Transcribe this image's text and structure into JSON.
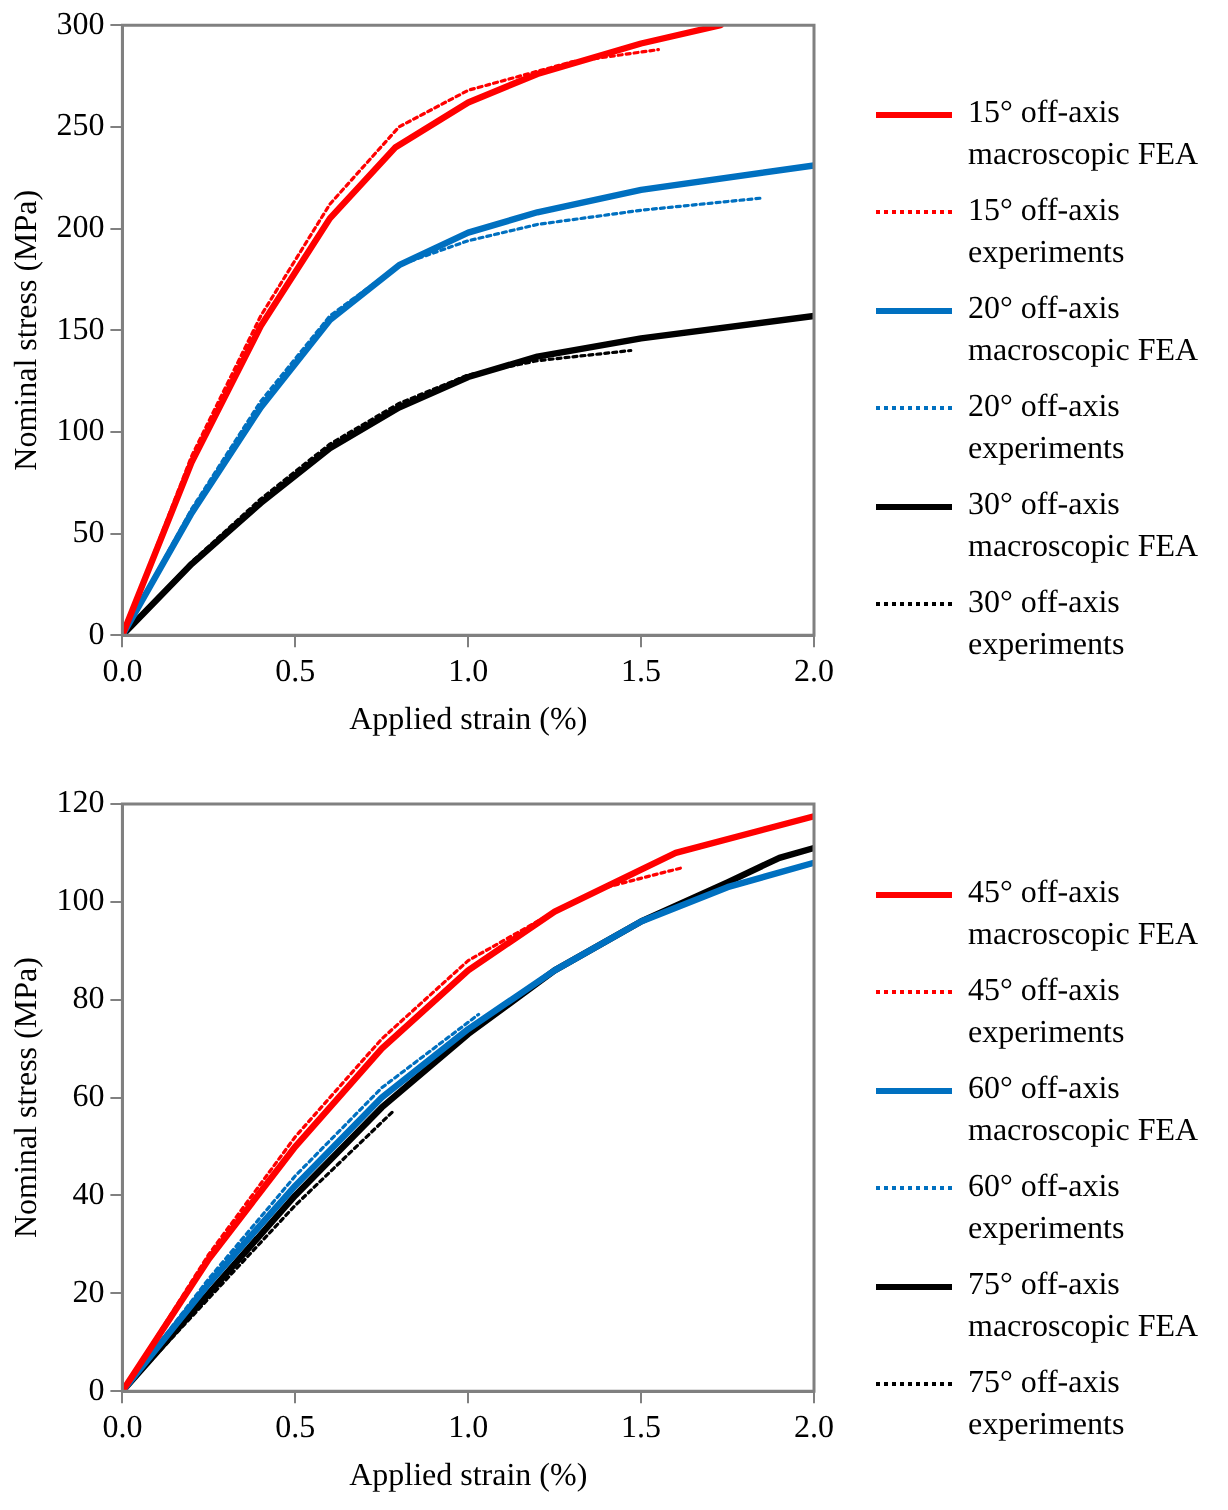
{
  "chart_data": [
    {
      "type": "line",
      "xlabel": "Applied strain (%)",
      "ylabel": "Nominal stress (MPa)",
      "xlim": [
        0,
        2
      ],
      "ylim": [
        0,
        300
      ],
      "xticks": [
        {
          "value": 0,
          "label": "0.0"
        },
        {
          "value": 0.5,
          "label": "0.5"
        },
        {
          "value": 1,
          "label": "1.0"
        },
        {
          "value": 1.5,
          "label": "1.5"
        },
        {
          "value": 2,
          "label": "2.0"
        }
      ],
      "yticks": [
        0,
        50,
        100,
        150,
        200,
        250,
        300
      ],
      "grid": false,
      "legend": "right",
      "marker": "none",
      "series": [
        {
          "name": "15°  off-axis macroscopic FEA",
          "color": "#ff0000",
          "line_style": "solid",
          "x": [
            0,
            0.2,
            0.4,
            0.6,
            0.79,
            1.0,
            1.2,
            1.5,
            1.73
          ],
          "values": [
            0,
            85,
            152,
            205,
            240,
            262,
            276,
            291,
            300
          ]
        },
        {
          "name": "15°  off-axis experiments",
          "color": "#ff0000",
          "line_style": "dotted",
          "x": [
            0,
            0.2,
            0.4,
            0.6,
            0.8,
            1.0,
            1.3,
            1.55
          ],
          "values": [
            0,
            88,
            157,
            212,
            250,
            268,
            282,
            288
          ]
        },
        {
          "name": "20°  off-axis macroscopic FEA",
          "color": "#0070c0",
          "line_style": "solid",
          "x": [
            0,
            0.2,
            0.4,
            0.6,
            0.8,
            1.0,
            1.2,
            1.5,
            2.0
          ],
          "values": [
            0,
            60,
            112,
            155,
            182,
            198,
            208,
            219,
            231
          ]
        },
        {
          "name": "20°  off-axis experiments",
          "color": "#0070c0",
          "line_style": "dotted",
          "x": [
            0,
            0.2,
            0.4,
            0.6,
            0.8,
            1.0,
            1.2,
            1.5,
            1.85
          ],
          "values": [
            0,
            62,
            115,
            157,
            182,
            194,
            202,
            209,
            215
          ]
        },
        {
          "name": "30°  off-axis macroscopic FEA",
          "color": "#000000",
          "line_style": "solid",
          "x": [
            0,
            0.2,
            0.4,
            0.6,
            0.8,
            1.0,
            1.2,
            1.5,
            2.0
          ],
          "values": [
            0,
            35,
            65,
            92,
            112,
            127,
            137,
            146,
            157
          ]
        },
        {
          "name": "30°  off-axis experiments",
          "color": "#000000",
          "line_style": "dotted",
          "x": [
            0,
            0.2,
            0.4,
            0.6,
            0.8,
            1.0,
            1.2,
            1.47
          ],
          "values": [
            0,
            36,
            67,
            94,
            114,
            128,
            135,
            140
          ]
        }
      ]
    },
    {
      "type": "line",
      "xlabel": "Applied strain (%)",
      "ylabel": "Nominal stress (MPa)",
      "xlim": [
        0,
        2
      ],
      "ylim": [
        0,
        120
      ],
      "xticks": [
        {
          "value": 0,
          "label": "0.0"
        },
        {
          "value": 0.5,
          "label": "0.5"
        },
        {
          "value": 1,
          "label": "1.0"
        },
        {
          "value": 1.5,
          "label": "1.5"
        },
        {
          "value": 2,
          "label": "2.0"
        }
      ],
      "yticks": [
        0,
        20,
        40,
        60,
        80,
        100,
        120
      ],
      "grid": false,
      "legend": "right",
      "marker": "none",
      "series": [
        {
          "name": "45°  off-axis macroscopic FEA",
          "color": "#ff0000",
          "line_style": "solid",
          "x": [
            0,
            0.25,
            0.5,
            0.75,
            1.0,
            1.25,
            1.6,
            2.0
          ],
          "values": [
            0,
            27,
            50,
            70,
            86,
            98,
            110,
            117.5
          ]
        },
        {
          "name": "45°  off-axis experiments",
          "color": "#ff0000",
          "line_style": "dotted",
          "x": [
            0,
            0.25,
            0.5,
            0.75,
            1.0,
            1.25,
            1.4,
            1.62
          ],
          "values": [
            0,
            28,
            52,
            72,
            88,
            98,
            103,
            107
          ]
        },
        {
          "name": "60°  off-axis macroscopic FEA",
          "color": "#0070c0",
          "line_style": "solid",
          "x": [
            0,
            0.25,
            0.5,
            0.75,
            1.0,
            1.25,
            1.5,
            1.75,
            2.0
          ],
          "values": [
            0,
            22,
            42,
            60,
            74,
            86,
            96,
            103,
            108
          ]
        },
        {
          "name": "60°  off-axis experiments",
          "color": "#0070c0",
          "line_style": "dotted",
          "x": [
            0,
            0.25,
            0.5,
            0.75,
            1.03
          ],
          "values": [
            0,
            23,
            44,
            62,
            77
          ]
        },
        {
          "name": "75°  off-axis macroscopic FEA",
          "color": "#000000",
          "line_style": "solid",
          "x": [
            0,
            0.25,
            0.5,
            0.75,
            1.0,
            1.25,
            1.5,
            1.75,
            1.9,
            2.0
          ],
          "values": [
            0,
            20,
            40,
            58,
            73,
            86,
            96,
            104,
            109,
            111
          ]
        },
        {
          "name": "75°  off-axis experiments",
          "color": "#000000",
          "line_style": "dotted",
          "x": [
            0,
            0.25,
            0.5,
            0.78
          ],
          "values": [
            0,
            19,
            38,
            57
          ]
        }
      ]
    }
  ]
}
